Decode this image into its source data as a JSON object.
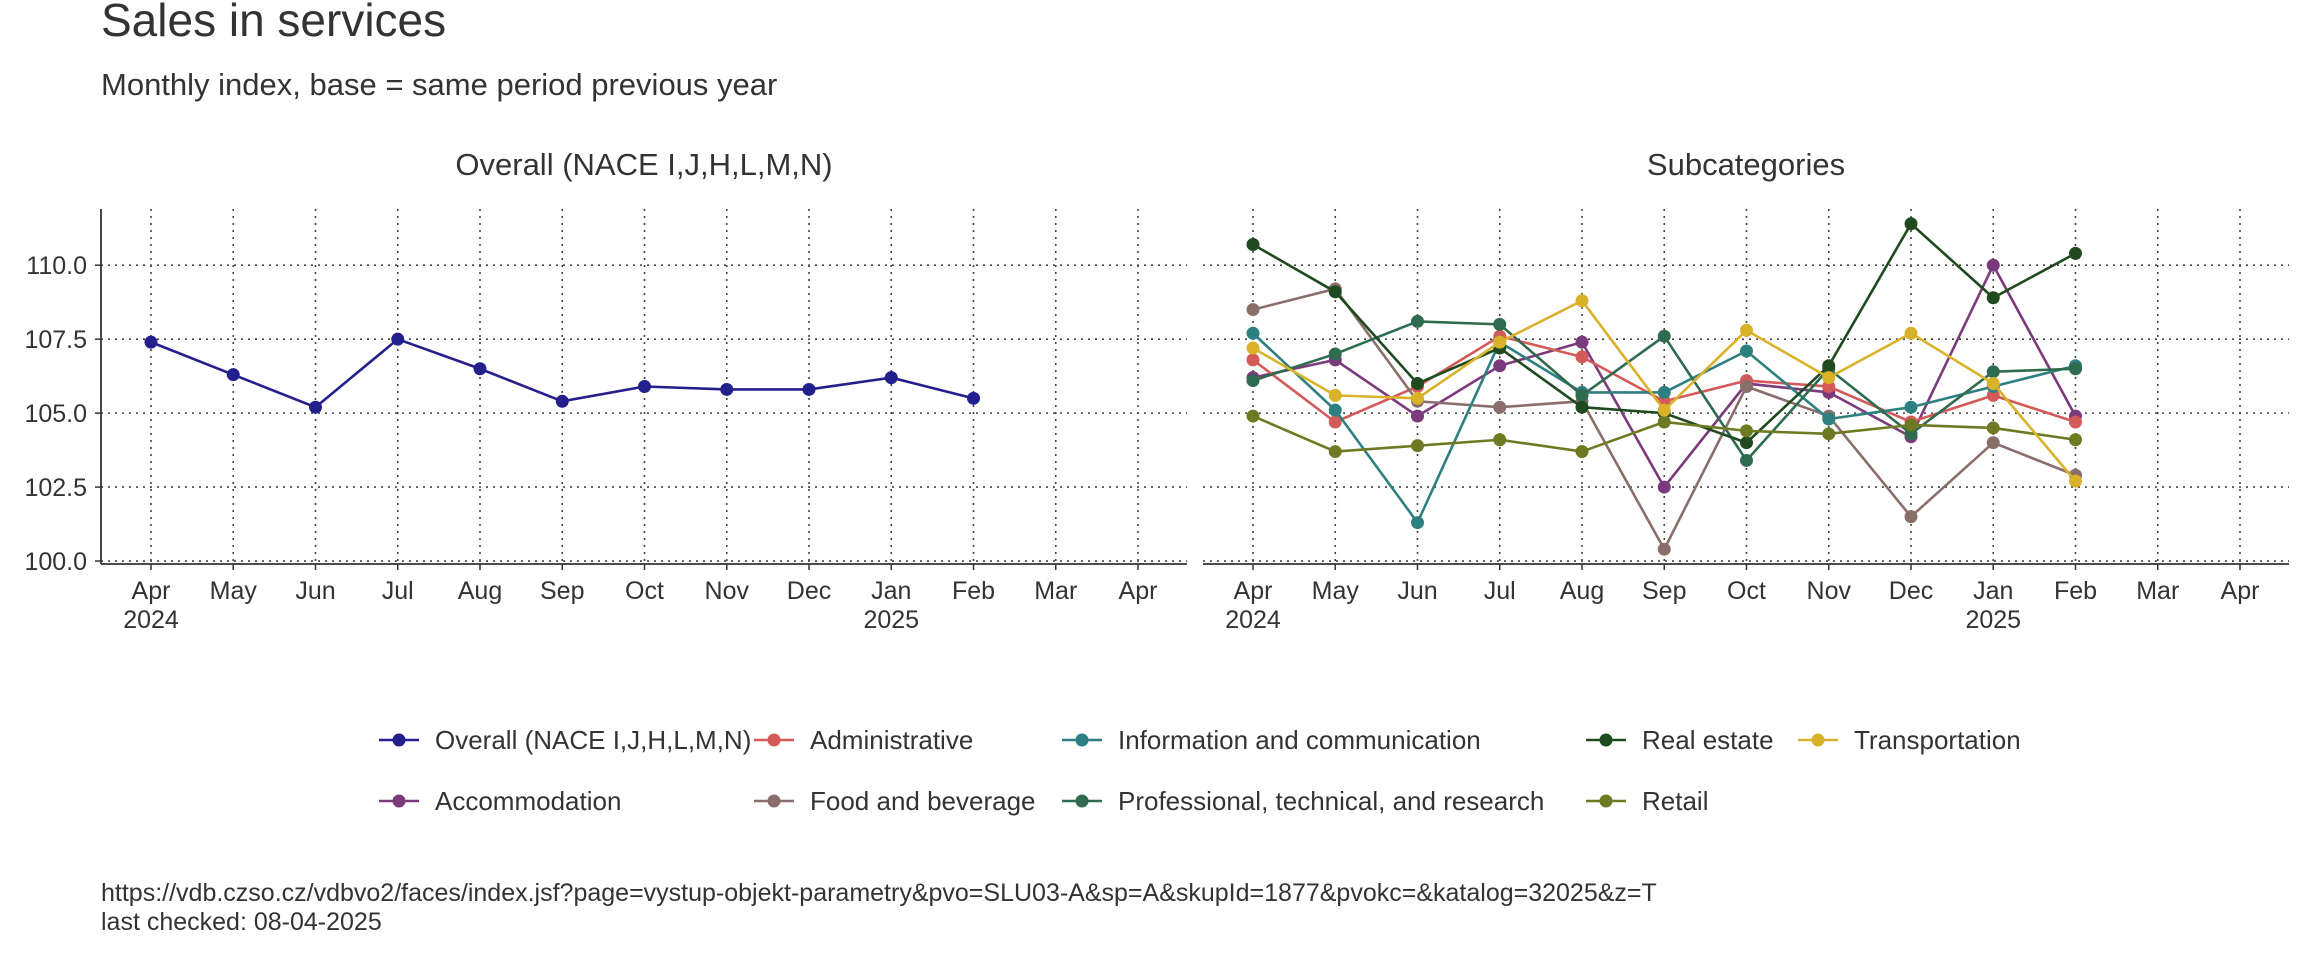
{
  "title": "Sales in services",
  "subtitle": "Monthly index, base = same period previous year",
  "source": "https://vdb.czso.cz/vdbvo2/faces/index.jsf?page=vystup-objekt-parametry&pvo=SLU03-A&sp=A&skupId=1877&pvokc=&katalog=32025&z=T",
  "checked": "last checked: 08-04-2025",
  "chart_data": [
    {
      "type": "line",
      "title": "Overall (NACE I,J,H,L,M,N)",
      "categories": [
        "Apr",
        "May",
        "Jun",
        "Jul",
        "Aug",
        "Sep",
        "Oct",
        "Nov",
        "Dec",
        "Jan",
        "Feb",
        "Mar",
        "Apr"
      ],
      "year_labels": [
        "2024",
        null,
        null,
        null,
        null,
        null,
        null,
        null,
        null,
        "2025",
        null,
        null,
        null
      ],
      "ylim": [
        99.9,
        111.9
      ],
      "yticks": [
        {
          "value": 100,
          "label": "100.0"
        },
        {
          "value": 102.5,
          "label": "102.5"
        },
        {
          "value": 105,
          "label": "105.0"
        },
        {
          "value": 107.5,
          "label": "107.5"
        },
        {
          "value": 110,
          "label": "110.0"
        }
      ],
      "grid": true,
      "series": [
        {
          "name": "Overall (NACE I,J,H,L,M,N)",
          "color": "#231f8c",
          "values": [
            107.4,
            106.3,
            105.2,
            107.5,
            106.5,
            105.4,
            105.9,
            105.8,
            105.8,
            106.2,
            105.5,
            null,
            null
          ]
        }
      ]
    },
    {
      "type": "line",
      "title": "Subcategories",
      "categories": [
        "Apr",
        "May",
        "Jun",
        "Jul",
        "Aug",
        "Sep",
        "Oct",
        "Nov",
        "Dec",
        "Jan",
        "Feb",
        "Mar",
        "Apr"
      ],
      "year_labels": [
        "2024",
        null,
        null,
        null,
        null,
        null,
        null,
        null,
        null,
        "2025",
        null,
        null,
        null
      ],
      "ylim": [
        99.9,
        111.9
      ],
      "yticks": [
        100,
        102.5,
        105,
        107.5,
        110
      ],
      "grid": true,
      "series": [
        {
          "name": "Accommodation",
          "color": "#7b3a7b",
          "values": [
            106.2,
            106.8,
            104.9,
            106.6,
            107.4,
            102.5,
            106.0,
            105.7,
            104.2,
            110.0,
            104.9,
            null,
            null
          ]
        },
        {
          "name": "Administrative",
          "color": "#d45a5a",
          "values": [
            106.8,
            104.7,
            105.9,
            107.6,
            106.9,
            105.4,
            106.1,
            105.9,
            104.7,
            105.6,
            104.7,
            null,
            null
          ]
        },
        {
          "name": "Food and beverage",
          "color": "#8a6e6a",
          "values": [
            108.5,
            109.2,
            105.4,
            105.2,
            105.4,
            100.4,
            105.9,
            104.9,
            101.5,
            104.0,
            102.9,
            null,
            null
          ]
        },
        {
          "name": "Information and communication",
          "color": "#2e8080",
          "values": [
            107.7,
            105.1,
            101.3,
            107.4,
            105.7,
            105.7,
            107.1,
            104.8,
            105.2,
            105.9,
            106.6,
            null,
            null
          ]
        },
        {
          "name": "Professional, technical, and research",
          "color": "#2e6b4f",
          "values": [
            106.1,
            107.0,
            108.1,
            108.0,
            105.6,
            107.6,
            103.4,
            106.5,
            104.3,
            106.4,
            106.5,
            null,
            null
          ]
        },
        {
          "name": "Real estate",
          "color": "#1f4a1f",
          "values": [
            110.7,
            109.1,
            106.0,
            107.2,
            105.2,
            105.0,
            104.0,
            106.6,
            111.4,
            108.9,
            110.4,
            null,
            null
          ]
        },
        {
          "name": "Retail",
          "color": "#6e7a22",
          "values": [
            104.9,
            103.7,
            103.9,
            104.1,
            103.7,
            104.7,
            104.4,
            104.3,
            104.6,
            104.5,
            104.1,
            null,
            null
          ]
        },
        {
          "name": "Transportation",
          "color": "#d9b22a",
          "values": [
            107.2,
            105.6,
            105.5,
            107.4,
            108.8,
            105.1,
            107.8,
            106.2,
            107.7,
            106.0,
            102.7,
            null,
            null
          ]
        }
      ]
    }
  ]
}
